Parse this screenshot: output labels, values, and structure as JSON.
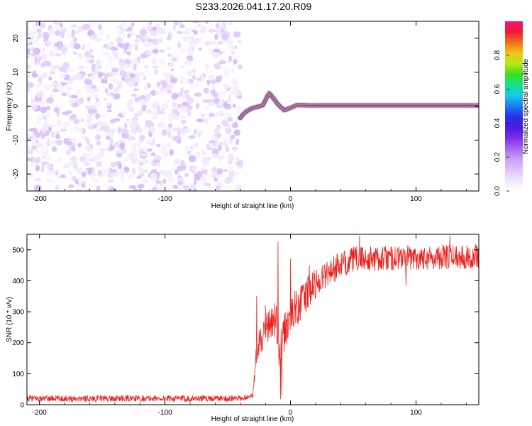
{
  "page": {
    "title": "S233.2026.041.17.20.R09"
  },
  "colors": {
    "snr_line": "#e8221e",
    "frame": "#000000",
    "colormap": [
      "#ffffff",
      "#f0e6ff",
      "#dcc4fa",
      "#c9a0f5",
      "#a767ee",
      "#7e2cea",
      "#4b1de0",
      "#2630e8",
      "#1b7bf0",
      "#19c9e8",
      "#14e08c",
      "#3ddc1e",
      "#b8e81a",
      "#f2c41a",
      "#f06f1c",
      "#ee1b3a",
      "#f21474"
    ]
  },
  "chart_data": [
    {
      "type": "heatmap",
      "name": "spectrogram",
      "xlabel": "Height of straight line (km)",
      "ylabel": "Frequency (Hz)",
      "xlim": [
        -210,
        150
      ],
      "ylim": [
        -25,
        25
      ],
      "xticks": [
        -200,
        -100,
        0,
        100
      ],
      "yticks": [
        -20,
        -10,
        0,
        10,
        20
      ],
      "noise_region_x": [
        -210,
        -40
      ],
      "signal_track": [
        {
          "x": -40,
          "f": -3.5
        },
        {
          "x": -38,
          "f": -2.5
        },
        {
          "x": -35,
          "f": -1.5
        },
        {
          "x": -30,
          "f": -0.5
        },
        {
          "x": -27,
          "f": -0.3
        },
        {
          "x": -22,
          "f": 0.3
        },
        {
          "x": -19,
          "f": 2.5
        },
        {
          "x": -17,
          "f": 3.8
        },
        {
          "x": -14,
          "f": 2.5
        },
        {
          "x": -10,
          "f": 0.5
        },
        {
          "x": -5,
          "f": -1.2
        },
        {
          "x": 0,
          "f": -0.5
        },
        {
          "x": 5,
          "f": 0.3
        },
        {
          "x": 15,
          "f": 0.2
        },
        {
          "x": 30,
          "f": 0.2
        },
        {
          "x": 60,
          "f": 0.2
        },
        {
          "x": 100,
          "f": 0.2
        },
        {
          "x": 150,
          "f": 0.2
        }
      ],
      "colorbar": {
        "label": "Normalized spectral amplitude",
        "range": [
          0,
          1
        ],
        "ticks": [
          0.0,
          0.2,
          0.4,
          0.6,
          0.8
        ]
      }
    },
    {
      "type": "line",
      "name": "snr",
      "xlabel": "Height of straight line (km)",
      "ylabel": "SNR (10 * v/v)",
      "xlim": [
        -210,
        150
      ],
      "ylim": [
        0,
        550
      ],
      "xticks": [
        -200,
        -100,
        0,
        100
      ],
      "yticks": [
        0,
        100,
        200,
        300,
        400,
        500
      ],
      "series": [
        {
          "name": "SNR",
          "envelope": [
            {
              "x": -210,
              "y": 20,
              "n": 10
            },
            {
              "x": -40,
              "y": 20,
              "n": 10
            },
            {
              "x": -30,
              "y": 30,
              "n": 8
            },
            {
              "x": -27,
              "y": 180,
              "n": 40
            },
            {
              "x": -20,
              "y": 240,
              "n": 50
            },
            {
              "x": -12,
              "y": 280,
              "n": 60
            },
            {
              "x": -8,
              "y": 150,
              "n": 100
            },
            {
              "x": -5,
              "y": 230,
              "n": 60
            },
            {
              "x": 0,
              "y": 290,
              "n": 60
            },
            {
              "x": 10,
              "y": 340,
              "n": 60
            },
            {
              "x": 20,
              "y": 390,
              "n": 50
            },
            {
              "x": 30,
              "y": 430,
              "n": 45
            },
            {
              "x": 50,
              "y": 470,
              "n": 40
            },
            {
              "x": 150,
              "y": 480,
              "n": 40
            }
          ],
          "spikes": [
            {
              "x": -27,
              "y": 350
            },
            {
              "x": -20,
              "y": 320
            },
            {
              "x": -15,
              "y": 250
            },
            {
              "x": -10,
              "y": 525
            },
            {
              "x": -8,
              "y": 18
            },
            {
              "x": -7,
              "y": 30
            },
            {
              "x": 0,
              "y": 470
            },
            {
              "x": 10,
              "y": 380
            },
            {
              "x": 15,
              "y": 450
            },
            {
              "x": 55,
              "y": 545
            },
            {
              "x": 92,
              "y": 385
            },
            {
              "x": 127,
              "y": 545
            }
          ]
        }
      ]
    }
  ]
}
